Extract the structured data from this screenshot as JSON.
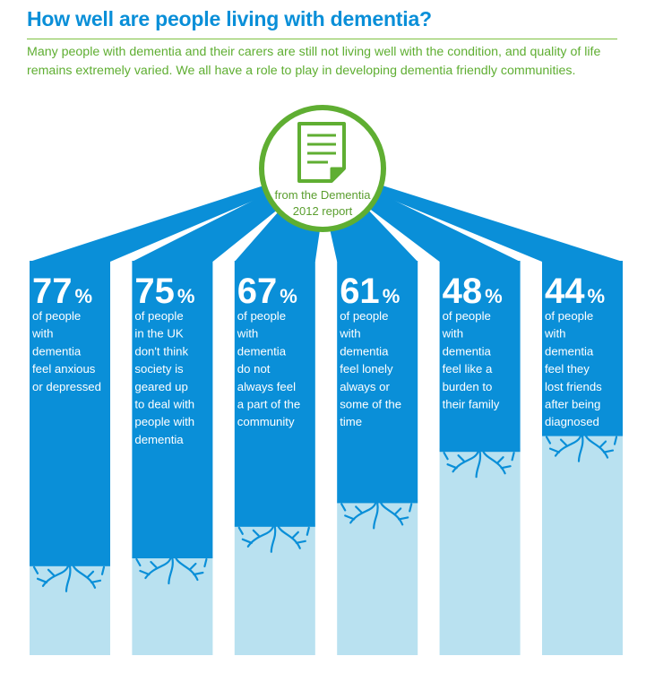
{
  "header": {
    "title": "How well are people living with dementia?",
    "intro": "Many people with dementia and their carers are still not living well with the condition, and quality of life remains extremely varied. We all have a role to play in developing dementia friendly communities."
  },
  "badge": {
    "icon": "document-icon",
    "line1": "from the Dementia",
    "line2": "2012 report"
  },
  "colors": {
    "title": "#0a8fd8",
    "intro": "#5fae32",
    "bar": "#0a8fd8",
    "bar_rest": "#b9e1f0",
    "badge_ring": "#5fae32"
  },
  "chart_data": {
    "type": "bar",
    "title": "How well are people living with dementia?",
    "unit": "%",
    "ylim": [
      0,
      100
    ],
    "values": [
      77,
      75,
      67,
      61,
      48,
      44
    ],
    "categories": [
      "of people with dementia feel anxious or depressed",
      "of people in the UK don't think society is geared up to deal with people with dementia",
      "of people with dementia do not always feel a part of the community",
      "of people with dementia feel lonely always or some of the time",
      "of people with dementia feel like a burden to their family",
      "of people with dementia feel they lost friends after being diagnosed"
    ],
    "label_lines": [
      [
        "of people",
        "with",
        "dementia",
        "feel anxious",
        "or depressed"
      ],
      [
        "of people",
        "in the UK",
        "don't think",
        "society is",
        "geared up",
        "to deal with",
        "people with",
        "dementia"
      ],
      [
        "of people",
        "with",
        "dementia",
        "do not",
        "always feel",
        "a part of the",
        "community"
      ],
      [
        "of people",
        "with",
        "dementia",
        "feel lonely",
        "always or",
        "some of the",
        "time"
      ],
      [
        "of people",
        "with",
        "dementia",
        "feel like a",
        "burden to",
        "their family"
      ],
      [
        "of people",
        "with",
        "dementia",
        "feel they",
        "lost friends",
        "after being",
        "diagnosed"
      ]
    ]
  }
}
